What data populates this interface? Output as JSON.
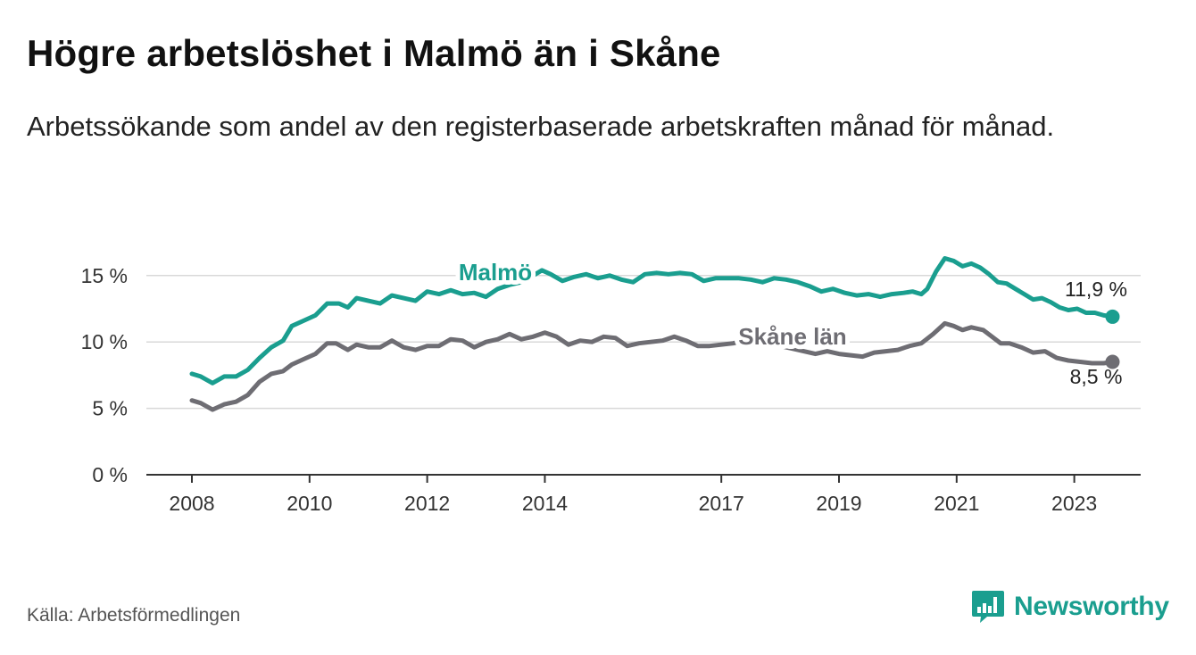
{
  "header": {
    "title": "Högre arbetslöshet i Malmö än i Skåne",
    "subtitle": "Arbetssökande som andel av den registerbaserade arbetskraften månad för månad."
  },
  "footer": {
    "source": "Källa: Arbetsförmedlingen",
    "brand": "Newsworthy"
  },
  "chart_data": {
    "type": "line",
    "xlim": [
      2008,
      2023.4
    ],
    "ylim": [
      0,
      16.6
    ],
    "yticks": [
      0,
      5,
      10,
      15
    ],
    "ytick_labels": [
      "0 %",
      "5 %",
      "10 %",
      "15 %"
    ],
    "xticks": [
      2008,
      2010,
      2012,
      2014,
      2017,
      2019,
      2021,
      2023
    ],
    "xtick_labels": [
      "2008",
      "2010",
      "2012",
      "2014",
      "2017",
      "2019",
      "2021",
      "2023"
    ],
    "grid": true,
    "series": [
      {
        "name": "Malmö",
        "color": "#1a9e8f",
        "end_label": "11,9 %",
        "points": [
          [
            2008.0,
            7.6
          ],
          [
            2008.15,
            7.4
          ],
          [
            2008.35,
            6.9
          ],
          [
            2008.55,
            7.4
          ],
          [
            2008.75,
            7.4
          ],
          [
            2008.95,
            7.9
          ],
          [
            2009.15,
            8.8
          ],
          [
            2009.35,
            9.6
          ],
          [
            2009.55,
            10.1
          ],
          [
            2009.7,
            11.2
          ],
          [
            2009.9,
            11.6
          ],
          [
            2010.1,
            12.0
          ],
          [
            2010.3,
            12.9
          ],
          [
            2010.5,
            12.9
          ],
          [
            2010.65,
            12.6
          ],
          [
            2010.8,
            13.3
          ],
          [
            2011.0,
            13.1
          ],
          [
            2011.2,
            12.9
          ],
          [
            2011.4,
            13.5
          ],
          [
            2011.6,
            13.3
          ],
          [
            2011.8,
            13.1
          ],
          [
            2012.0,
            13.8
          ],
          [
            2012.2,
            13.6
          ],
          [
            2012.4,
            13.9
          ],
          [
            2012.6,
            13.6
          ],
          [
            2012.8,
            13.7
          ],
          [
            2013.0,
            13.4
          ],
          [
            2013.2,
            14.0
          ],
          [
            2013.4,
            14.3
          ],
          [
            2013.6,
            14.5
          ],
          [
            2013.8,
            15.0
          ],
          [
            2013.95,
            15.4
          ],
          [
            2014.1,
            15.1
          ],
          [
            2014.3,
            14.6
          ],
          [
            2014.5,
            14.9
          ],
          [
            2014.7,
            15.1
          ],
          [
            2014.9,
            14.8
          ],
          [
            2015.1,
            15.0
          ],
          [
            2015.3,
            14.7
          ],
          [
            2015.5,
            14.5
          ],
          [
            2015.7,
            15.1
          ],
          [
            2015.9,
            15.2
          ],
          [
            2016.1,
            15.1
          ],
          [
            2016.3,
            15.2
          ],
          [
            2016.5,
            15.1
          ],
          [
            2016.7,
            14.6
          ],
          [
            2016.9,
            14.8
          ],
          [
            2017.1,
            14.8
          ],
          [
            2017.3,
            14.8
          ],
          [
            2017.5,
            14.7
          ],
          [
            2017.7,
            14.5
          ],
          [
            2017.9,
            14.8
          ],
          [
            2018.1,
            14.7
          ],
          [
            2018.3,
            14.5
          ],
          [
            2018.5,
            14.2
          ],
          [
            2018.7,
            13.8
          ],
          [
            2018.9,
            14.0
          ],
          [
            2019.1,
            13.7
          ],
          [
            2019.3,
            13.5
          ],
          [
            2019.5,
            13.6
          ],
          [
            2019.7,
            13.4
          ],
          [
            2019.9,
            13.6
          ],
          [
            2020.1,
            13.7
          ],
          [
            2020.25,
            13.8
          ],
          [
            2020.4,
            13.6
          ],
          [
            2020.5,
            14.0
          ],
          [
            2020.65,
            15.3
          ],
          [
            2020.8,
            16.3
          ],
          [
            2020.95,
            16.1
          ],
          [
            2021.1,
            15.7
          ],
          [
            2021.25,
            15.9
          ],
          [
            2021.4,
            15.6
          ],
          [
            2021.55,
            15.1
          ],
          [
            2021.7,
            14.5
          ],
          [
            2021.85,
            14.4
          ],
          [
            2022.0,
            14.0
          ],
          [
            2022.15,
            13.6
          ],
          [
            2022.3,
            13.2
          ],
          [
            2022.45,
            13.3
          ],
          [
            2022.6,
            13.0
          ],
          [
            2022.75,
            12.6
          ],
          [
            2022.9,
            12.4
          ],
          [
            2023.05,
            12.5
          ],
          [
            2023.2,
            12.2
          ],
          [
            2023.35,
            12.2
          ],
          [
            2023.5,
            12.0
          ],
          [
            2023.65,
            11.9
          ]
        ]
      },
      {
        "name": "Skåne län",
        "color": "#6e6d73",
        "end_label": "8,5 %",
        "points": [
          [
            2008.0,
            5.6
          ],
          [
            2008.15,
            5.4
          ],
          [
            2008.35,
            4.9
          ],
          [
            2008.55,
            5.3
          ],
          [
            2008.75,
            5.5
          ],
          [
            2008.95,
            6.0
          ],
          [
            2009.15,
            7.0
          ],
          [
            2009.35,
            7.6
          ],
          [
            2009.55,
            7.8
          ],
          [
            2009.7,
            8.3
          ],
          [
            2009.9,
            8.7
          ],
          [
            2010.1,
            9.1
          ],
          [
            2010.3,
            9.9
          ],
          [
            2010.45,
            9.9
          ],
          [
            2010.65,
            9.4
          ],
          [
            2010.8,
            9.8
          ],
          [
            2011.0,
            9.6
          ],
          [
            2011.2,
            9.6
          ],
          [
            2011.4,
            10.1
          ],
          [
            2011.6,
            9.6
          ],
          [
            2011.8,
            9.4
          ],
          [
            2012.0,
            9.7
          ],
          [
            2012.2,
            9.7
          ],
          [
            2012.4,
            10.2
          ],
          [
            2012.6,
            10.1
          ],
          [
            2012.8,
            9.6
          ],
          [
            2013.0,
            10.0
          ],
          [
            2013.2,
            10.2
          ],
          [
            2013.4,
            10.6
          ],
          [
            2013.6,
            10.2
          ],
          [
            2013.8,
            10.4
          ],
          [
            2014.0,
            10.7
          ],
          [
            2014.2,
            10.4
          ],
          [
            2014.4,
            9.8
          ],
          [
            2014.6,
            10.1
          ],
          [
            2014.8,
            10.0
          ],
          [
            2015.0,
            10.4
          ],
          [
            2015.2,
            10.3
          ],
          [
            2015.4,
            9.7
          ],
          [
            2015.6,
            9.9
          ],
          [
            2015.8,
            10.0
          ],
          [
            2016.0,
            10.1
          ],
          [
            2016.2,
            10.4
          ],
          [
            2016.4,
            10.1
          ],
          [
            2016.6,
            9.7
          ],
          [
            2016.8,
            9.7
          ],
          [
            2017.0,
            9.8
          ],
          [
            2017.2,
            9.9
          ],
          [
            2017.4,
            10.1
          ],
          [
            2017.6,
            10.0
          ],
          [
            2017.8,
            9.8
          ],
          [
            2018.0,
            9.7
          ],
          [
            2018.2,
            9.5
          ],
          [
            2018.4,
            9.3
          ],
          [
            2018.6,
            9.1
          ],
          [
            2018.8,
            9.3
          ],
          [
            2019.0,
            9.1
          ],
          [
            2019.2,
            9.0
          ],
          [
            2019.4,
            8.9
          ],
          [
            2019.6,
            9.2
          ],
          [
            2019.8,
            9.3
          ],
          [
            2020.0,
            9.4
          ],
          [
            2020.2,
            9.7
          ],
          [
            2020.4,
            9.9
          ],
          [
            2020.6,
            10.6
          ],
          [
            2020.8,
            11.4
          ],
          [
            2020.95,
            11.2
          ],
          [
            2021.1,
            10.9
          ],
          [
            2021.25,
            11.1
          ],
          [
            2021.45,
            10.9
          ],
          [
            2021.6,
            10.4
          ],
          [
            2021.75,
            9.9
          ],
          [
            2021.9,
            9.9
          ],
          [
            2022.1,
            9.6
          ],
          [
            2022.3,
            9.2
          ],
          [
            2022.5,
            9.3
          ],
          [
            2022.7,
            8.8
          ],
          [
            2022.9,
            8.6
          ],
          [
            2023.1,
            8.5
          ],
          [
            2023.3,
            8.4
          ],
          [
            2023.5,
            8.4
          ],
          [
            2023.65,
            8.5
          ]
        ]
      }
    ]
  }
}
